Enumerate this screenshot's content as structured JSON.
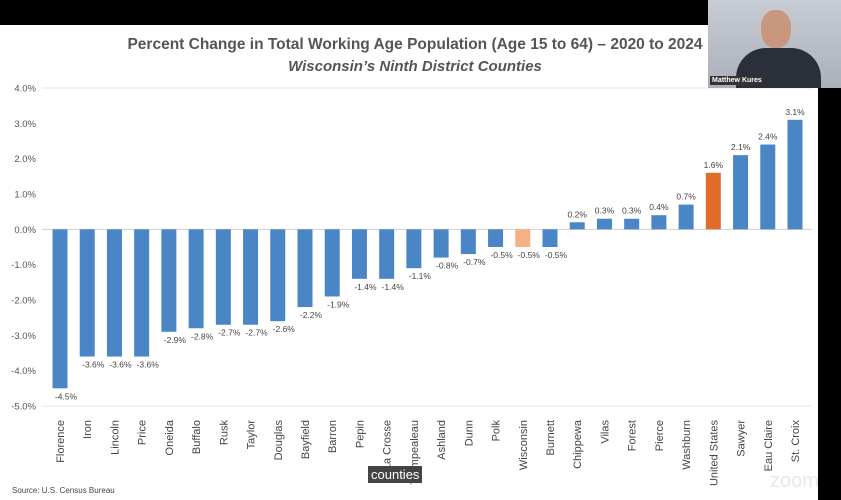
{
  "chart_data": {
    "type": "bar",
    "title": "Percent Change in Total Working Age Population (Age 15 to 64) – 2020 to 2024",
    "subtitle": "Wisconsin’s Ninth District Counties",
    "xlabel": "",
    "ylabel": "",
    "ylim": [
      -5.0,
      4.0
    ],
    "yticks": [
      "4.0%",
      "3.0%",
      "2.0%",
      "1.0%",
      "0.0%",
      "-1.0%",
      "-2.0%",
      "-3.0%",
      "-4.0%",
      "-5.0%"
    ],
    "grid": false,
    "categories": [
      "Florence",
      "Iron",
      "Lincoln",
      "Price",
      "Oneida",
      "Buffalo",
      "Rusk",
      "Taylor",
      "Douglas",
      "Bayfield",
      "Barron",
      "Pepin",
      "La Crosse",
      "Trempealeau",
      "Ashland",
      "Dunn",
      "Polk",
      "Wisconsin",
      "Burnett",
      "Chippewa",
      "Vilas",
      "Forest",
      "Pierce",
      "Washburn",
      "United States",
      "Sawyer",
      "Eau Claire",
      "St. Croix"
    ],
    "values": [
      -4.5,
      -3.6,
      -3.6,
      -3.6,
      -2.9,
      -2.8,
      -2.7,
      -2.7,
      -2.6,
      -2.2,
      -1.9,
      -1.4,
      -1.4,
      -1.1,
      -0.8,
      -0.7,
      -0.5,
      -0.5,
      -0.5,
      0.2,
      0.3,
      0.3,
      0.4,
      0.7,
      1.6,
      2.1,
      2.4,
      3.1
    ],
    "data_labels": [
      "-4.5%",
      "-3.6%",
      "-3.6%",
      "-3.6%",
      "-2.9%",
      "-2.8%",
      "-2.7%",
      "-2.7%",
      "-2.6%",
      "-2.2%",
      "-1.9%",
      "-1.4%",
      "-1.4%",
      "-1.1%",
      "-0.8%",
      "-0.7%",
      "-0.5%",
      "-0.5%",
      "-0.5%",
      "0.2%",
      "0.3%",
      "0.3%",
      "0.4%",
      "0.7%",
      "1.6%",
      "2.1%",
      "2.4%",
      "3.1%"
    ],
    "colors": {
      "default": "#4a86c6",
      "Wisconsin": "#f4b183",
      "United States": "#e06c2c"
    }
  },
  "source": "Source: U.S. Census Bureau",
  "caption": "counties",
  "webcam": {
    "name": "Matthew Kures"
  },
  "watermark": "zoom"
}
